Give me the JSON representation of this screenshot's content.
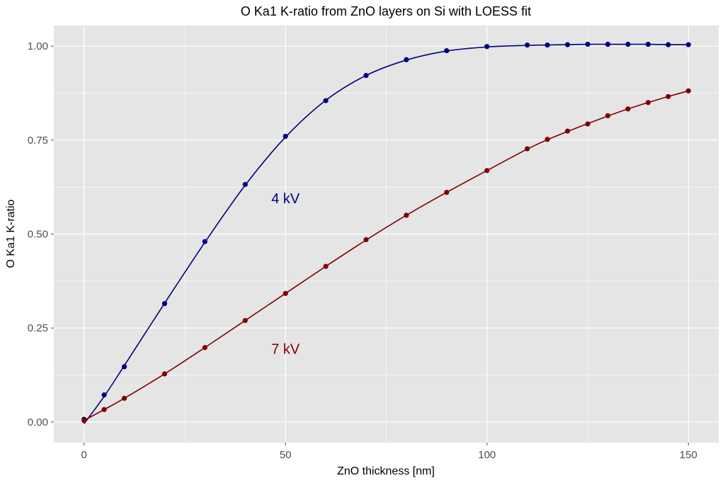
{
  "chart_data": {
    "type": "scatter",
    "title": "O Ka1 K-ratio from ZnO layers on Si with LOESS fit",
    "xlabel": "ZnO thickness [nm]",
    "ylabel": "O Ka1 K-ratio",
    "xlim": [
      -7.5,
      157.5
    ],
    "ylim": [
      -0.055,
      1.055
    ],
    "x_ticks": [
      0,
      50,
      100,
      150
    ],
    "x_tick_labels": [
      "0",
      "50",
      "100",
      "150"
    ],
    "y_ticks": [
      0,
      0.25,
      0.5,
      0.75,
      1.0
    ],
    "y_tick_labels": [
      "0.00",
      "0.25",
      "0.50",
      "0.75",
      "1.00"
    ],
    "grid": true,
    "legend": "none",
    "series": [
      {
        "color": "#000080",
        "x": [
          0,
          5,
          10,
          20,
          30,
          40,
          50,
          60,
          70,
          80,
          90,
          100,
          110,
          115,
          120,
          125,
          130,
          135,
          140,
          145,
          150
        ],
        "y": [
          0.007,
          0.072,
          0.147,
          0.315,
          0.48,
          0.632,
          0.76,
          0.855,
          0.922,
          0.964,
          0.988,
          0.999,
          1.003,
          1.003,
          1.004,
          1.005,
          1.005,
          1.005,
          1.005,
          1.004,
          1.004
        ],
        "fit_y": [
          -0.005,
          0.068,
          0.15,
          0.316,
          0.478,
          0.63,
          0.758,
          0.856,
          0.922,
          0.963,
          0.987,
          0.998,
          1.002,
          1.003,
          1.004,
          1.005,
          1.005,
          1.005,
          1.005,
          1.004,
          1.004
        ]
      },
      {
        "color": "#800000",
        "x": [
          0,
          5,
          10,
          20,
          30,
          40,
          50,
          60,
          70,
          80,
          90,
          100,
          110,
          115,
          120,
          125,
          130,
          135,
          140,
          145,
          150
        ],
        "y": [
          0.004,
          0.033,
          0.063,
          0.128,
          0.198,
          0.27,
          0.342,
          0.414,
          0.485,
          0.55,
          0.611,
          0.669,
          0.727,
          0.752,
          0.774,
          0.793,
          0.815,
          0.833,
          0.85,
          0.866,
          0.881
        ],
        "fit_y": [
          0.004,
          0.033,
          0.063,
          0.128,
          0.198,
          0.27,
          0.342,
          0.414,
          0.484,
          0.55,
          0.611,
          0.669,
          0.726,
          0.751,
          0.773,
          0.794,
          0.814,
          0.833,
          0.85,
          0.866,
          0.881
        ]
      }
    ],
    "annotations": [
      {
        "text": "4 kV",
        "x": 50,
        "y": 0.595,
        "color": "#000080"
      },
      {
        "text": "7 kV",
        "x": 50,
        "y": 0.195,
        "color": "#800000"
      }
    ],
    "colors": {
      "panel": "#e5e5e5",
      "grid": "#ffffff",
      "tick": "#4d4d4d"
    }
  }
}
